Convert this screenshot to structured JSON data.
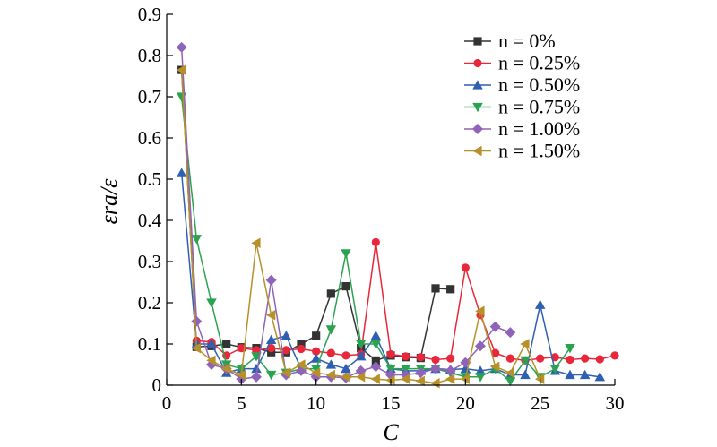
{
  "chart_data": {
    "type": "line",
    "xlabel": "C",
    "ylabel": "εra/ε",
    "xlim": [
      0,
      30
    ],
    "ylim": [
      0,
      0.9
    ],
    "xticks": [
      0,
      5,
      10,
      15,
      20,
      25,
      30
    ],
    "yticks": [
      0,
      0.1,
      0.2,
      0.3,
      0.4,
      0.5,
      0.6,
      0.7,
      0.8,
      0.9
    ],
    "xtick_labels": [
      "0",
      "5",
      "10",
      "15",
      "20",
      "25",
      "30"
    ],
    "ytick_labels": [
      "0",
      "0.1",
      "0.2",
      "0.3",
      "0.4",
      "0.5",
      "0.6",
      "0.7",
      "0.8",
      "0.9"
    ],
    "grid": false,
    "legend_position": "top-right",
    "series": [
      {
        "name": "n = 0%",
        "color": "#333333",
        "marker": "square",
        "x": [
          1,
          2,
          3,
          4,
          5,
          6,
          7,
          8,
          9,
          10,
          11,
          12,
          13,
          14,
          15,
          16,
          17,
          18,
          19
        ],
        "y": [
          0.765,
          0.093,
          0.095,
          0.1,
          0.092,
          0.09,
          0.08,
          0.08,
          0.1,
          0.12,
          0.222,
          0.24,
          0.09,
          0.06,
          0.072,
          0.068,
          0.066,
          0.235,
          0.233
        ]
      },
      {
        "name": "n = 0.25%",
        "color": "#e8283a",
        "marker": "circle",
        "x": [
          2,
          3,
          4,
          5,
          6,
          7,
          8,
          9,
          10,
          11,
          12,
          13,
          14,
          15,
          16,
          17,
          18,
          19,
          20,
          21,
          22,
          23,
          24,
          25,
          26,
          27,
          28,
          29,
          30
        ],
        "y": [
          0.108,
          0.105,
          0.072,
          0.09,
          0.085,
          0.09,
          0.085,
          0.088,
          0.082,
          0.078,
          0.072,
          0.075,
          0.347,
          0.075,
          0.07,
          0.068,
          0.062,
          0.065,
          0.285,
          0.17,
          0.078,
          0.065,
          0.06,
          0.065,
          0.068,
          0.062,
          0.065,
          0.063,
          0.072
        ]
      },
      {
        "name": "n = 0.50%",
        "color": "#2e5fb0",
        "marker": "triangle-up",
        "x": [
          1,
          2,
          3,
          4,
          5,
          6,
          7,
          8,
          9,
          10,
          11,
          12,
          13,
          14,
          15,
          16,
          17,
          18,
          19,
          20,
          21,
          22,
          23,
          24,
          25,
          26,
          27,
          28,
          29
        ],
        "y": [
          0.515,
          0.1,
          0.1,
          0.03,
          0.04,
          0.04,
          0.11,
          0.12,
          0.04,
          0.065,
          0.05,
          0.04,
          0.07,
          0.12,
          0.04,
          0.035,
          0.035,
          0.04,
          0.038,
          0.04,
          0.035,
          0.04,
          0.025,
          0.025,
          0.195,
          0.035,
          0.025,
          0.025,
          0.02
        ]
      },
      {
        "name": "n = 0.75%",
        "color": "#2aa350",
        "marker": "triangle-down",
        "x": [
          1,
          2,
          3,
          4,
          5,
          6,
          7,
          8,
          9,
          10,
          11,
          12,
          13,
          14,
          15,
          16,
          17,
          18,
          19,
          20,
          21,
          22,
          23,
          24,
          25,
          26,
          27
        ],
        "y": [
          0.7,
          0.355,
          0.2,
          0.05,
          0.04,
          0.07,
          0.025,
          0.03,
          0.04,
          0.04,
          0.135,
          0.32,
          0.1,
          0.1,
          0.04,
          0.04,
          0.04,
          0.04,
          0.03,
          0.02,
          0.02,
          0.04,
          0.01,
          0.06,
          0.02,
          0.04,
          0.09
        ]
      },
      {
        "name": "n = 1.00%",
        "color": "#8e63b8",
        "marker": "diamond",
        "x": [
          1,
          2,
          3,
          4,
          5,
          6,
          7,
          8,
          9,
          10,
          11,
          12,
          13,
          14,
          15,
          16,
          17,
          18,
          19,
          20,
          21,
          22,
          23
        ],
        "y": [
          0.82,
          0.155,
          0.05,
          0.04,
          0.015,
          0.02,
          0.255,
          0.025,
          0.035,
          0.02,
          0.02,
          0.018,
          0.035,
          0.045,
          0.025,
          0.025,
          0.03,
          0.04,
          0.035,
          0.055,
          0.095,
          0.142,
          0.128
        ]
      },
      {
        "name": "n = 1.50%",
        "color": "#b8902a",
        "marker": "triangle-left",
        "x": [
          1,
          2,
          3,
          4,
          5,
          6,
          7,
          8,
          9,
          10,
          11,
          12,
          13,
          14,
          15,
          16,
          17,
          18,
          19,
          20,
          21,
          22,
          23,
          24,
          25
        ],
        "y": [
          0.765,
          0.09,
          0.06,
          0.04,
          0.025,
          0.345,
          0.17,
          0.03,
          0.05,
          0.03,
          0.025,
          0.02,
          0.02,
          0.015,
          0.012,
          0.015,
          0.01,
          0.005,
          0.015,
          0.015,
          0.18,
          0.045,
          0.03,
          0.1,
          0.015
        ]
      }
    ]
  }
}
